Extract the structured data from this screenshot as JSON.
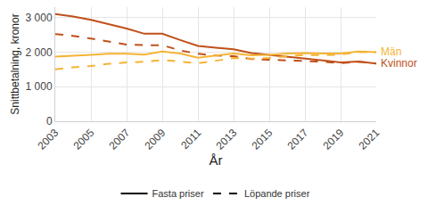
{
  "chart_data": {
    "type": "line",
    "x_label": "År",
    "y_label": "Snittbetalning, kronor",
    "x": [
      2003,
      2004,
      2005,
      2006,
      2007,
      2008,
      2009,
      2010,
      2011,
      2012,
      2013,
      2014,
      2015,
      2016,
      2017,
      2018,
      2019,
      2020,
      2021
    ],
    "xlim": [
      2003,
      2021
    ],
    "xticks": [
      2003,
      2005,
      2007,
      2009,
      2011,
      2013,
      2015,
      2017,
      2019,
      2021
    ],
    "ylim": [
      0,
      3300
    ],
    "yticks": [
      0,
      {
        "value": 1000,
        "label": "1 000"
      },
      {
        "value": 2000,
        "label": "2 000"
      },
      {
        "value": 3000,
        "label": "3 000"
      }
    ],
    "grid": true,
    "legend": "bottom",
    "legend_entries": [
      {
        "label": "Fasta priser",
        "line_style": "solid",
        "color": "#000000"
      },
      {
        "label": "Löpande priser",
        "line_style": "dashed",
        "color": "#000000"
      }
    ],
    "series": [
      {
        "name": "Kvinnor",
        "color": "#c0501a",
        "line_style": "solid",
        "values": [
          3100,
          3030,
          2930,
          2810,
          2680,
          2530,
          2530,
          2350,
          2180,
          2130,
          2080,
          1970,
          1920,
          1870,
          1820,
          1760,
          1700,
          1730,
          1670
        ]
      },
      {
        "name": "Kvinnor",
        "color": "#c0501a",
        "line_style": "dashed",
        "values": [
          2520,
          2470,
          2390,
          2300,
          2220,
          2200,
          2200,
          2050,
          1950,
          1900,
          1880,
          1800,
          1780,
          1770,
          1750,
          1720,
          1680,
          1720,
          1670
        ]
      },
      {
        "name": "Män",
        "color": "#f5b335",
        "line_style": "solid",
        "values": [
          1870,
          1890,
          1920,
          1950,
          1950,
          1930,
          2020,
          1960,
          1840,
          1900,
          1960,
          1910,
          1920,
          1960,
          1970,
          1960,
          1960,
          2020,
          2000
        ]
      },
      {
        "name": "Män",
        "color": "#f5b335",
        "line_style": "dashed",
        "values": [
          1500,
          1560,
          1600,
          1660,
          1700,
          1720,
          1770,
          1720,
          1680,
          1750,
          1830,
          1810,
          1830,
          1880,
          1920,
          1910,
          1930,
          2000,
          2000
        ]
      }
    ]
  }
}
